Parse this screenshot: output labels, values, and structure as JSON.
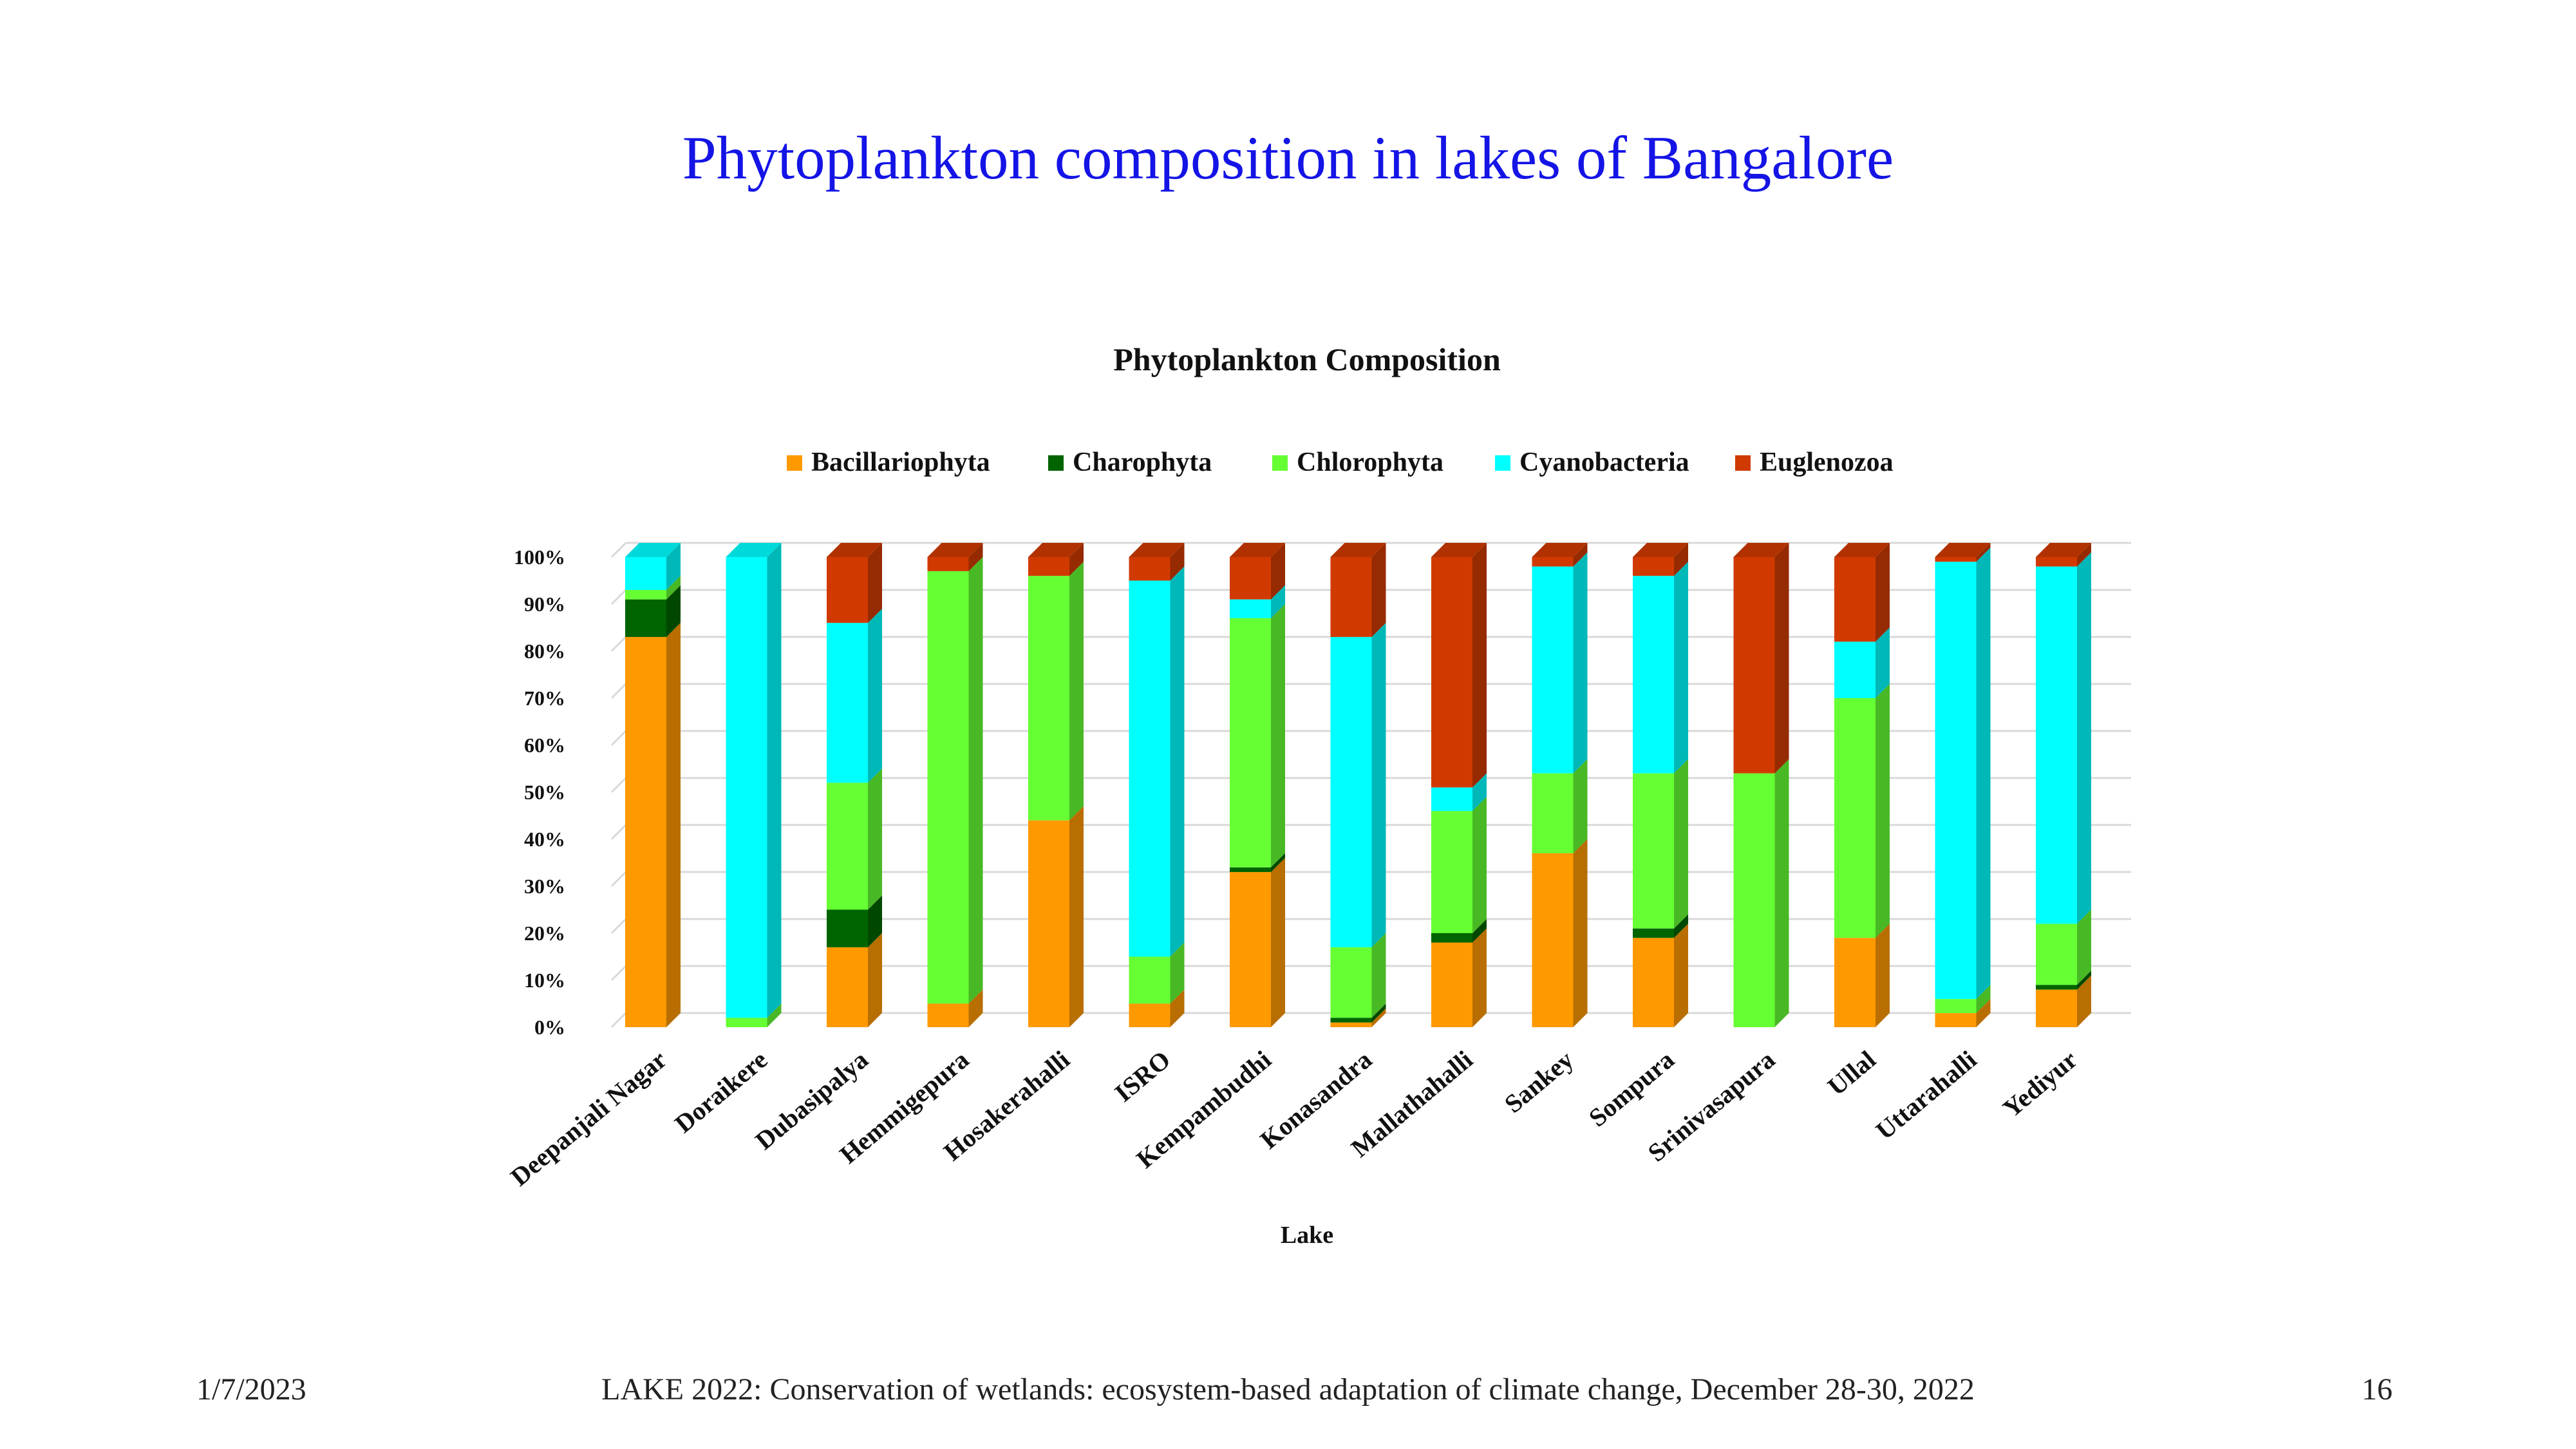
{
  "slide": {
    "title": "Phytoplankton composition in lakes of Bangalore"
  },
  "footer": {
    "date": "1/7/2023",
    "text": "LAKE 2022: Conservation of wetlands: ecosystem-based adaptation of climate change, December 28-30, 2022",
    "page": "16"
  },
  "chart_data": {
    "type": "bar",
    "stacked": true,
    "percent": true,
    "title": "Phytoplankton Composition",
    "xlabel": "Lake",
    "ylabel": "",
    "ylim": [
      0,
      100
    ],
    "yticks": [
      "0%",
      "10%",
      "20%",
      "30%",
      "40%",
      "50%",
      "60%",
      "70%",
      "80%",
      "90%",
      "100%"
    ],
    "legend_position": "top",
    "categories": [
      "Deepanjali Nagar",
      "Doraikere",
      "Dubasipalya",
      "Hemmigepura",
      "Hosakerahalli",
      "ISRO",
      "Kempambudhi",
      "Konasandra",
      "Mallathahalli",
      "Sankey",
      "Sompura",
      "Srinivasapura",
      "Ullal",
      "Uttarahalli",
      "Yediyur"
    ],
    "series": [
      {
        "name": "Bacillariophyta",
        "color": "#ff9900",
        "values": [
          83,
          0,
          17,
          5,
          44,
          5,
          33,
          1,
          18,
          37,
          19,
          0,
          19,
          3,
          8
        ]
      },
      {
        "name": "Charophyta",
        "color": "#006400",
        "values": [
          8,
          0,
          8,
          0,
          0,
          0,
          1,
          1,
          2,
          0,
          2,
          0,
          0,
          0,
          1
        ]
      },
      {
        "name": "Chlorophyta",
        "color": "#66ff33",
        "values": [
          2,
          2,
          27,
          92,
          52,
          10,
          53,
          15,
          26,
          17,
          33,
          54,
          51,
          3,
          13
        ]
      },
      {
        "name": "Cyanobacteria",
        "color": "#00ffff",
        "values": [
          7,
          98,
          34,
          0,
          0,
          80,
          4,
          66,
          5,
          44,
          42,
          0,
          12,
          93,
          76
        ]
      },
      {
        "name": "Euglenozoa",
        "color": "#d03a00",
        "values": [
          0,
          0,
          14,
          3,
          4,
          5,
          9,
          17,
          49,
          2,
          4,
          46,
          18,
          1,
          2
        ]
      }
    ]
  }
}
